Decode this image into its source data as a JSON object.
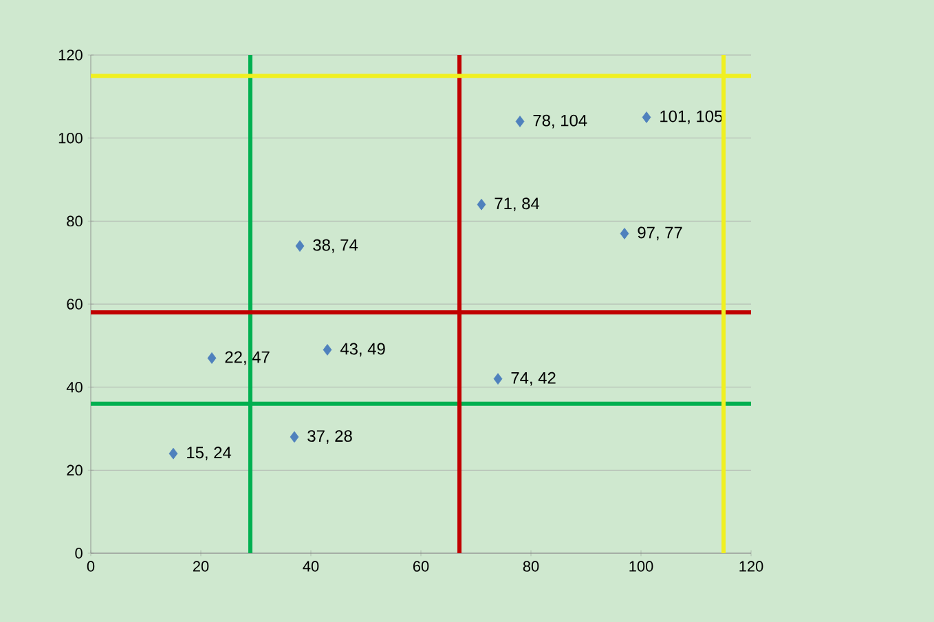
{
  "chart_data": {
    "type": "scatter",
    "x": [
      15,
      22,
      37,
      38,
      43,
      71,
      74,
      78,
      97,
      101
    ],
    "series": [
      {
        "color": "#4f81bd",
        "values": [
          24,
          47,
          28,
          74,
          49,
          84,
          42,
          104,
          77,
          105
        ],
        "value_labels": [
          "15, 24",
          "22, 47",
          "37, 28",
          "38, 74",
          "43, 49",
          "71, 84",
          "74, 42",
          "78, 104",
          "97, 77",
          "101, 105"
        ]
      }
    ],
    "xlim": [
      0,
      120
    ],
    "ylim": [
      0,
      120
    ],
    "xticks": [
      0,
      20,
      40,
      60,
      80,
      100,
      120
    ],
    "yticks": [
      0,
      20,
      40,
      60,
      80,
      100,
      120
    ],
    "grid": "y",
    "marker": "diamond",
    "ref_lines": [
      {
        "axis": "x",
        "value": 29,
        "color": "#00b050"
      },
      {
        "axis": "y",
        "value": 36,
        "color": "#00b050"
      },
      {
        "axis": "x",
        "value": 67,
        "color": "#c00000"
      },
      {
        "axis": "y",
        "value": 58,
        "color": "#c00000"
      },
      {
        "axis": "x",
        "value": 115,
        "color": "#f0f020"
      },
      {
        "axis": "y",
        "value": 115,
        "color": "#f0f020"
      }
    ]
  }
}
